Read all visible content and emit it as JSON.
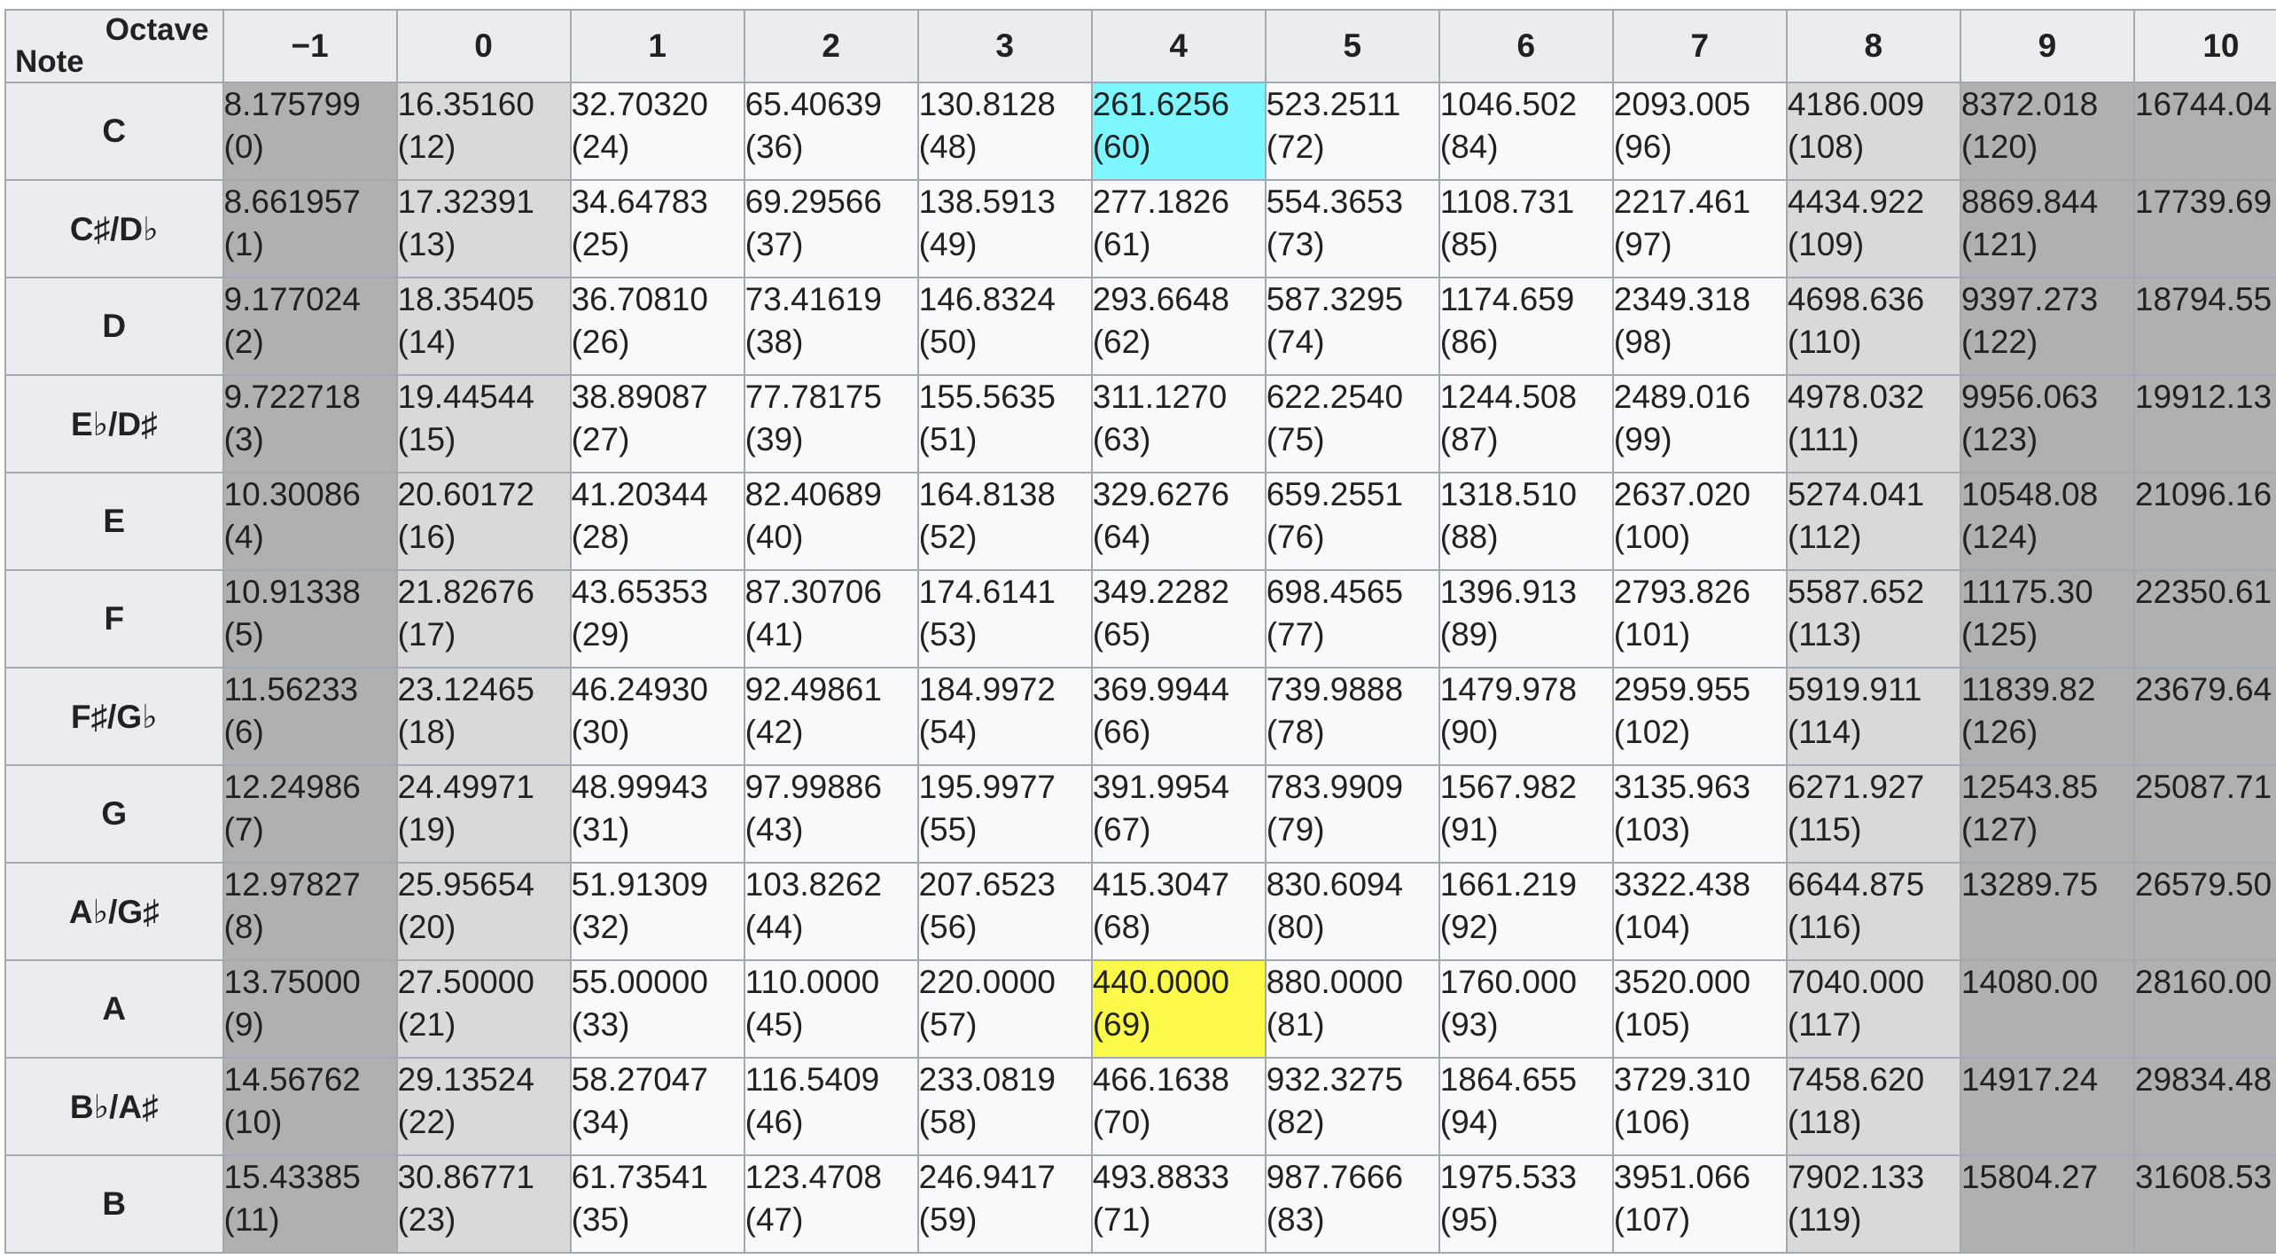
{
  "table": {
    "corner": {
      "column_label": "Octave",
      "row_label": "Note"
    },
    "octaves": [
      "−1",
      "0",
      "1",
      "2",
      "3",
      "4",
      "5",
      "6",
      "7",
      "8",
      "9",
      "10"
    ],
    "rows": [
      {
        "note": "C",
        "cells": [
          {
            "freq": "8.175799",
            "midi": "(0)"
          },
          {
            "freq": "16.35160",
            "midi": "(12)"
          },
          {
            "freq": "32.70320",
            "midi": "(24)"
          },
          {
            "freq": "65.40639",
            "midi": "(36)"
          },
          {
            "freq": "130.8128",
            "midi": "(48)"
          },
          {
            "freq": "261.6256",
            "midi": "(60)"
          },
          {
            "freq": "523.2511",
            "midi": "(72)"
          },
          {
            "freq": "1046.502",
            "midi": "(84)"
          },
          {
            "freq": "2093.005",
            "midi": "(96)"
          },
          {
            "freq": "4186.009",
            "midi": "(108)"
          },
          {
            "freq": "8372.018",
            "midi": "(120)"
          },
          {
            "freq": "16744.04",
            "midi": ""
          }
        ]
      },
      {
        "note": "C♯/D♭",
        "cells": [
          {
            "freq": "8.661957",
            "midi": "(1)"
          },
          {
            "freq": "17.32391",
            "midi": "(13)"
          },
          {
            "freq": "34.64783",
            "midi": "(25)"
          },
          {
            "freq": "69.29566",
            "midi": "(37)"
          },
          {
            "freq": "138.5913",
            "midi": "(49)"
          },
          {
            "freq": "277.1826",
            "midi": "(61)"
          },
          {
            "freq": "554.3653",
            "midi": "(73)"
          },
          {
            "freq": "1108.731",
            "midi": "(85)"
          },
          {
            "freq": "2217.461",
            "midi": "(97)"
          },
          {
            "freq": "4434.922",
            "midi": "(109)"
          },
          {
            "freq": "8869.844",
            "midi": "(121)"
          },
          {
            "freq": "17739.69",
            "midi": ""
          }
        ]
      },
      {
        "note": "D",
        "cells": [
          {
            "freq": "9.177024",
            "midi": "(2)"
          },
          {
            "freq": "18.35405",
            "midi": "(14)"
          },
          {
            "freq": "36.70810",
            "midi": "(26)"
          },
          {
            "freq": "73.41619",
            "midi": "(38)"
          },
          {
            "freq": "146.8324",
            "midi": "(50)"
          },
          {
            "freq": "293.6648",
            "midi": "(62)"
          },
          {
            "freq": "587.3295",
            "midi": "(74)"
          },
          {
            "freq": "1174.659",
            "midi": "(86)"
          },
          {
            "freq": "2349.318",
            "midi": "(98)"
          },
          {
            "freq": "4698.636",
            "midi": "(110)"
          },
          {
            "freq": "9397.273",
            "midi": "(122)"
          },
          {
            "freq": "18794.55",
            "midi": ""
          }
        ]
      },
      {
        "note": "E♭/D♯",
        "cells": [
          {
            "freq": "9.722718",
            "midi": "(3)"
          },
          {
            "freq": "19.44544",
            "midi": "(15)"
          },
          {
            "freq": "38.89087",
            "midi": "(27)"
          },
          {
            "freq": "77.78175",
            "midi": "(39)"
          },
          {
            "freq": "155.5635",
            "midi": "(51)"
          },
          {
            "freq": "311.1270",
            "midi": "(63)"
          },
          {
            "freq": "622.2540",
            "midi": "(75)"
          },
          {
            "freq": "1244.508",
            "midi": "(87)"
          },
          {
            "freq": "2489.016",
            "midi": "(99)"
          },
          {
            "freq": "4978.032",
            "midi": "(111)"
          },
          {
            "freq": "9956.063",
            "midi": "(123)"
          },
          {
            "freq": "19912.13",
            "midi": ""
          }
        ]
      },
      {
        "note": "E",
        "cells": [
          {
            "freq": "10.30086",
            "midi": "(4)"
          },
          {
            "freq": "20.60172",
            "midi": "(16)"
          },
          {
            "freq": "41.20344",
            "midi": "(28)"
          },
          {
            "freq": "82.40689",
            "midi": "(40)"
          },
          {
            "freq": "164.8138",
            "midi": "(52)"
          },
          {
            "freq": "329.6276",
            "midi": "(64)"
          },
          {
            "freq": "659.2551",
            "midi": "(76)"
          },
          {
            "freq": "1318.510",
            "midi": "(88)"
          },
          {
            "freq": "2637.020",
            "midi": "(100)"
          },
          {
            "freq": "5274.041",
            "midi": "(112)"
          },
          {
            "freq": "10548.08",
            "midi": "(124)"
          },
          {
            "freq": "21096.16",
            "midi": ""
          }
        ]
      },
      {
        "note": "F",
        "cells": [
          {
            "freq": "10.91338",
            "midi": "(5)"
          },
          {
            "freq": "21.82676",
            "midi": "(17)"
          },
          {
            "freq": "43.65353",
            "midi": "(29)"
          },
          {
            "freq": "87.30706",
            "midi": "(41)"
          },
          {
            "freq": "174.6141",
            "midi": "(53)"
          },
          {
            "freq": "349.2282",
            "midi": "(65)"
          },
          {
            "freq": "698.4565",
            "midi": "(77)"
          },
          {
            "freq": "1396.913",
            "midi": "(89)"
          },
          {
            "freq": "2793.826",
            "midi": "(101)"
          },
          {
            "freq": "5587.652",
            "midi": "(113)"
          },
          {
            "freq": "11175.30",
            "midi": "(125)"
          },
          {
            "freq": "22350.61",
            "midi": ""
          }
        ]
      },
      {
        "note": "F♯/G♭",
        "cells": [
          {
            "freq": "11.56233",
            "midi": "(6)"
          },
          {
            "freq": "23.12465",
            "midi": "(18)"
          },
          {
            "freq": "46.24930",
            "midi": "(30)"
          },
          {
            "freq": "92.49861",
            "midi": "(42)"
          },
          {
            "freq": "184.9972",
            "midi": "(54)"
          },
          {
            "freq": "369.9944",
            "midi": "(66)"
          },
          {
            "freq": "739.9888",
            "midi": "(78)"
          },
          {
            "freq": "1479.978",
            "midi": "(90)"
          },
          {
            "freq": "2959.955",
            "midi": "(102)"
          },
          {
            "freq": "5919.911",
            "midi": "(114)"
          },
          {
            "freq": "11839.82",
            "midi": "(126)"
          },
          {
            "freq": "23679.64",
            "midi": ""
          }
        ]
      },
      {
        "note": "G",
        "cells": [
          {
            "freq": "12.24986",
            "midi": "(7)"
          },
          {
            "freq": "24.49971",
            "midi": "(19)"
          },
          {
            "freq": "48.99943",
            "midi": "(31)"
          },
          {
            "freq": "97.99886",
            "midi": "(43)"
          },
          {
            "freq": "195.9977",
            "midi": "(55)"
          },
          {
            "freq": "391.9954",
            "midi": "(67)"
          },
          {
            "freq": "783.9909",
            "midi": "(79)"
          },
          {
            "freq": "1567.982",
            "midi": "(91)"
          },
          {
            "freq": "3135.963",
            "midi": "(103)"
          },
          {
            "freq": "6271.927",
            "midi": "(115)"
          },
          {
            "freq": "12543.85",
            "midi": "(127)"
          },
          {
            "freq": "25087.71",
            "midi": ""
          }
        ]
      },
      {
        "note": "A♭/G♯",
        "cells": [
          {
            "freq": "12.97827",
            "midi": "(8)"
          },
          {
            "freq": "25.95654",
            "midi": "(20)"
          },
          {
            "freq": "51.91309",
            "midi": "(32)"
          },
          {
            "freq": "103.8262",
            "midi": "(44)"
          },
          {
            "freq": "207.6523",
            "midi": "(56)"
          },
          {
            "freq": "415.3047",
            "midi": "(68)"
          },
          {
            "freq": "830.6094",
            "midi": "(80)"
          },
          {
            "freq": "1661.219",
            "midi": "(92)"
          },
          {
            "freq": "3322.438",
            "midi": "(104)"
          },
          {
            "freq": "6644.875",
            "midi": "(116)"
          },
          {
            "freq": "13289.75",
            "midi": ""
          },
          {
            "freq": "26579.50",
            "midi": ""
          }
        ]
      },
      {
        "note": "A",
        "cells": [
          {
            "freq": "13.75000",
            "midi": "(9)"
          },
          {
            "freq": "27.50000",
            "midi": "(21)"
          },
          {
            "freq": "55.00000",
            "midi": "(33)"
          },
          {
            "freq": "110.0000",
            "midi": "(45)"
          },
          {
            "freq": "220.0000",
            "midi": "(57)"
          },
          {
            "freq": "440.0000",
            "midi": "(69)"
          },
          {
            "freq": "880.0000",
            "midi": "(81)"
          },
          {
            "freq": "1760.000",
            "midi": "(93)"
          },
          {
            "freq": "3520.000",
            "midi": "(105)"
          },
          {
            "freq": "7040.000",
            "midi": "(117)"
          },
          {
            "freq": "14080.00",
            "midi": ""
          },
          {
            "freq": "28160.00",
            "midi": ""
          }
        ]
      },
      {
        "note": "B♭/A♯",
        "cells": [
          {
            "freq": "14.56762",
            "midi": "(10)"
          },
          {
            "freq": "29.13524",
            "midi": "(22)"
          },
          {
            "freq": "58.27047",
            "midi": "(34)"
          },
          {
            "freq": "116.5409",
            "midi": "(46)"
          },
          {
            "freq": "233.0819",
            "midi": "(58)"
          },
          {
            "freq": "466.1638",
            "midi": "(70)"
          },
          {
            "freq": "932.3275",
            "midi": "(82)"
          },
          {
            "freq": "1864.655",
            "midi": "(94)"
          },
          {
            "freq": "3729.310",
            "midi": "(106)"
          },
          {
            "freq": "7458.620",
            "midi": "(118)"
          },
          {
            "freq": "14917.24",
            "midi": ""
          },
          {
            "freq": "29834.48",
            "midi": ""
          }
        ]
      },
      {
        "note": "B",
        "cells": [
          {
            "freq": "15.43385",
            "midi": "(11)"
          },
          {
            "freq": "30.86771",
            "midi": "(23)"
          },
          {
            "freq": "61.73541",
            "midi": "(35)"
          },
          {
            "freq": "123.4708",
            "midi": "(47)"
          },
          {
            "freq": "246.9417",
            "midi": "(59)"
          },
          {
            "freq": "493.8833",
            "midi": "(71)"
          },
          {
            "freq": "987.7666",
            "midi": "(83)"
          },
          {
            "freq": "1975.533",
            "midi": "(95)"
          },
          {
            "freq": "3951.066",
            "midi": "(107)"
          },
          {
            "freq": "7902.133",
            "midi": "(119)"
          },
          {
            "freq": "15804.27",
            "midi": ""
          },
          {
            "freq": "31608.53",
            "midi": ""
          }
        ]
      }
    ],
    "colors": {
      "header_bg": "#eaecf0",
      "cell_bg": "#f8f9fa",
      "out_of_midi_shade": "#b0b0b0",
      "extreme_octave_shade": "#d9d9d9",
      "middle_c_highlight": "#7ef6fd",
      "a440_highlight": "#fbf94a",
      "border": "#a2a9b1"
    },
    "highlights": {
      "middle_c": {
        "row": 0,
        "octave_index": 5
      },
      "a440": {
        "row": 9,
        "octave_index": 5
      }
    }
  }
}
